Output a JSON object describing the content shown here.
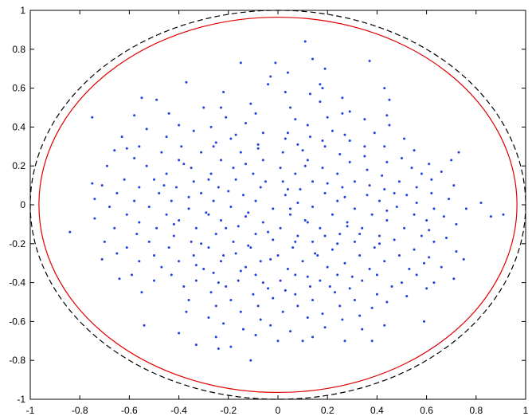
{
  "chart_data": {
    "type": "scatter",
    "title": "",
    "xlabel": "",
    "ylabel": "",
    "xlim": [
      -1,
      1
    ],
    "ylim": [
      -1,
      1
    ],
    "x_ticks": [
      "-1",
      "-0.8",
      "-0.6",
      "-0.4",
      "-0.2",
      "0",
      "0.2",
      "0.4",
      "0.6",
      "0.8",
      "1"
    ],
    "y_ticks": [
      "1",
      "0.8",
      "0.6",
      "0.4",
      "0.2",
      "0",
      "-0.2",
      "-0.4",
      "-0.6",
      "-0.8",
      "-1"
    ],
    "grid": false,
    "colors": {
      "points": "#1f3fe0",
      "inner_circle": "#e00000",
      "outer_circle": "#000000"
    },
    "curves": [
      {
        "shape": "ellipse",
        "center": [
          0,
          0
        ],
        "radius": 0.965,
        "style": "solid",
        "color": "#e00000"
      },
      {
        "shape": "ellipse",
        "center": [
          0,
          0
        ],
        "radius": 1.0,
        "style": "dashed",
        "color": "#000000"
      }
    ],
    "points": [
      [
        0.11,
        0.84
      ],
      [
        0.14,
        0.75
      ],
      [
        -0.15,
        0.73
      ],
      [
        0.37,
        0.74
      ],
      [
        -0.01,
        0.73
      ],
      [
        0.19,
        0.7
      ],
      [
        0.04,
        0.68
      ],
      [
        -0.03,
        0.66
      ],
      [
        -0.37,
        0.63
      ],
      [
        -0.04,
        0.62
      ],
      [
        0.17,
        0.62
      ],
      [
        0.18,
        0.6
      ],
      [
        -0.22,
        0.58
      ],
      [
        0.03,
        0.58
      ],
      [
        0.43,
        0.6
      ],
      [
        0.13,
        0.57
      ],
      [
        -0.55,
        0.55
      ],
      [
        -0.49,
        0.54
      ],
      [
        0.17,
        0.53
      ],
      [
        0.45,
        0.54
      ],
      [
        0.26,
        0.55
      ],
      [
        -0.3,
        0.5
      ],
      [
        0.05,
        0.5
      ],
      [
        -0.23,
        0.5
      ],
      [
        -0.11,
        0.52
      ],
      [
        -0.09,
        0.47
      ],
      [
        0.26,
        0.47
      ],
      [
        0.29,
        0.48
      ],
      [
        0.2,
        0.45
      ],
      [
        0.44,
        0.46
      ],
      [
        -0.75,
        0.45
      ],
      [
        -0.58,
        0.46
      ],
      [
        -0.44,
        0.47
      ],
      [
        -0.21,
        0.45
      ],
      [
        0.07,
        0.44
      ],
      [
        0.35,
        0.44
      ],
      [
        -0.4,
        0.41
      ],
      [
        -0.27,
        0.4
      ],
      [
        -0.13,
        0.42
      ],
      [
        0.12,
        0.41
      ],
      [
        0.45,
        0.41
      ],
      [
        -0.53,
        0.39
      ],
      [
        -0.34,
        0.38
      ],
      [
        -0.06,
        0.37
      ],
      [
        0.22,
        0.38
      ],
      [
        0.39,
        0.37
      ],
      [
        0.13,
        0.35
      ],
      [
        -0.63,
        0.35
      ],
      [
        -0.45,
        0.35
      ],
      [
        -0.19,
        0.34
      ],
      [
        0.03,
        0.34
      ],
      [
        0.29,
        0.33
      ],
      [
        0.51,
        0.34
      ],
      [
        -0.25,
        0.32
      ],
      [
        0.08,
        0.31
      ],
      [
        -0.56,
        0.3
      ],
      [
        -0.39,
        0.3
      ],
      [
        -0.08,
        0.29
      ],
      [
        0.19,
        0.3
      ],
      [
        0.43,
        0.3
      ],
      [
        0.55,
        0.28
      ],
      [
        -0.66,
        0.28
      ],
      [
        -0.61,
        0.29
      ],
      [
        -0.47,
        0.27
      ],
      [
        -0.31,
        0.27
      ],
      [
        -0.15,
        0.27
      ],
      [
        0.02,
        0.27
      ],
      [
        0.25,
        0.26
      ],
      [
        0.35,
        0.25
      ],
      [
        0.5,
        0.24
      ],
      [
        0.73,
        0.27
      ],
      [
        -0.58,
        0.24
      ],
      [
        -0.4,
        0.23
      ],
      [
        -0.23,
        0.23
      ],
      [
        -0.06,
        0.23
      ],
      [
        0.12,
        0.23
      ],
      [
        0.29,
        0.22
      ],
      [
        0.44,
        0.22
      ],
      [
        0.61,
        0.21
      ],
      [
        0.7,
        0.23
      ],
      [
        -0.69,
        0.2
      ],
      [
        -0.53,
        0.2
      ],
      [
        -0.35,
        0.19
      ],
      [
        -0.18,
        0.19
      ],
      [
        0.01,
        0.19
      ],
      [
        0.18,
        0.19
      ],
      [
        0.36,
        0.18
      ],
      [
        0.54,
        0.19
      ],
      [
        -0.45,
        0.16
      ],
      [
        -0.27,
        0.16
      ],
      [
        -0.1,
        0.16
      ],
      [
        0.07,
        0.16
      ],
      [
        0.24,
        0.16
      ],
      [
        0.42,
        0.15
      ],
      [
        0.58,
        0.16
      ],
      [
        0.66,
        0.17
      ],
      [
        -0.62,
        0.13
      ],
      [
        -0.5,
        0.13
      ],
      [
        -0.34,
        0.12
      ],
      [
        -0.17,
        0.13
      ],
      [
        0.02,
        0.12
      ],
      [
        0.14,
        0.12
      ],
      [
        0.31,
        0.12
      ],
      [
        0.49,
        0.12
      ],
      [
        0.62,
        0.13
      ],
      [
        -0.75,
        0.11
      ],
      [
        -0.71,
        0.1
      ],
      [
        -0.56,
        0.09
      ],
      [
        -0.41,
        0.09
      ],
      [
        -0.24,
        0.09
      ],
      [
        -0.07,
        0.09
      ],
      [
        0.09,
        0.08
      ],
      [
        0.26,
        0.09
      ],
      [
        0.43,
        0.08
      ],
      [
        0.56,
        0.09
      ],
      [
        0.71,
        0.1
      ],
      [
        -0.65,
        0.06
      ],
      [
        -0.48,
        0.06
      ],
      [
        -0.31,
        0.06
      ],
      [
        -0.14,
        0.05
      ],
      [
        0.03,
        0.05
      ],
      [
        0.19,
        0.06
      ],
      [
        0.36,
        0.05
      ],
      [
        0.52,
        0.05
      ],
      [
        0.62,
        0.06
      ],
      [
        -0.74,
        0.03
      ],
      [
        -0.58,
        0.02
      ],
      [
        -0.43,
        0.02
      ],
      [
        -0.26,
        0.02
      ],
      [
        -0.09,
        0.02
      ],
      [
        0.08,
        0.01
      ],
      [
        0.24,
        0.02
      ],
      [
        0.41,
        0.02
      ],
      [
        0.56,
        0.01
      ],
      [
        0.69,
        0.03
      ],
      [
        0.82,
        0.01
      ],
      [
        -0.68,
        -0.01
      ],
      [
        -0.52,
        -0.01
      ],
      [
        -0.36,
        -0.02
      ],
      [
        -0.19,
        -0.01
      ],
      [
        -0.02,
        -0.02
      ],
      [
        0.14,
        -0.01
      ],
      [
        0.31,
        -0.02
      ],
      [
        0.48,
        -0.01
      ],
      [
        0.63,
        -0.02
      ],
      [
        0.76,
        -0.02
      ],
      [
        0.91,
        -0.05
      ],
      [
        -0.74,
        -0.07
      ],
      [
        -0.61,
        -0.05
      ],
      [
        -0.45,
        -0.05
      ],
      [
        -0.28,
        -0.05
      ],
      [
        -0.12,
        -0.04
      ],
      [
        0.05,
        -0.05
      ],
      [
        0.22,
        -0.05
      ],
      [
        0.38,
        -0.05
      ],
      [
        0.55,
        -0.05
      ],
      [
        0.67,
        -0.06
      ],
      [
        0.86,
        -0.06
      ],
      [
        -0.56,
        -0.09
      ],
      [
        -0.4,
        -0.08
      ],
      [
        -0.23,
        -0.08
      ],
      [
        -0.06,
        -0.09
      ],
      [
        0.11,
        -0.08
      ],
      [
        0.28,
        -0.09
      ],
      [
        0.44,
        -0.08
      ],
      [
        0.6,
        -0.08
      ],
      [
        0.72,
        -0.1
      ],
      [
        -0.66,
        -0.12
      ],
      [
        -0.49,
        -0.12
      ],
      [
        -0.33,
        -0.12
      ],
      [
        -0.16,
        -0.11
      ],
      [
        0.01,
        -0.12
      ],
      [
        0.17,
        -0.12
      ],
      [
        0.34,
        -0.12
      ],
      [
        0.51,
        -0.12
      ],
      [
        0.61,
        -0.13
      ],
      [
        -0.84,
        -0.14
      ],
      [
        -0.57,
        -0.15
      ],
      [
        -0.42,
        -0.16
      ],
      [
        -0.25,
        -0.15
      ],
      [
        -0.09,
        -0.15
      ],
      [
        0.08,
        -0.16
      ],
      [
        0.25,
        -0.15
      ],
      [
        0.41,
        -0.16
      ],
      [
        0.58,
        -0.16
      ],
      [
        0.68,
        -0.17
      ],
      [
        -0.7,
        -0.19
      ],
      [
        -0.52,
        -0.19
      ],
      [
        -0.35,
        -0.19
      ],
      [
        -0.18,
        -0.19
      ],
      [
        -0.02,
        -0.18
      ],
      [
        0.14,
        -0.19
      ],
      [
        0.31,
        -0.19
      ],
      [
        0.47,
        -0.18
      ],
      [
        0.63,
        -0.19
      ],
      [
        -0.61,
        -0.22
      ],
      [
        -0.44,
        -0.22
      ],
      [
        -0.28,
        -0.22
      ],
      [
        -0.11,
        -0.22
      ],
      [
        0.06,
        -0.22
      ],
      [
        0.22,
        -0.23
      ],
      [
        0.39,
        -0.22
      ],
      [
        0.55,
        -0.23
      ],
      [
        0.72,
        -0.24
      ],
      [
        -0.65,
        -0.25
      ],
      [
        -0.5,
        -0.26
      ],
      [
        -0.34,
        -0.26
      ],
      [
        -0.17,
        -0.25
      ],
      [
        0.0,
        -0.26
      ],
      [
        0.16,
        -0.26
      ],
      [
        0.33,
        -0.26
      ],
      [
        0.49,
        -0.26
      ],
      [
        0.61,
        -0.27
      ],
      [
        -0.71,
        -0.28
      ],
      [
        -0.56,
        -0.29
      ],
      [
        -0.4,
        -0.29
      ],
      [
        -0.23,
        -0.29
      ],
      [
        -0.07,
        -0.29
      ],
      [
        0.1,
        -0.29
      ],
      [
        0.27,
        -0.3
      ],
      [
        0.43,
        -0.29
      ],
      [
        0.59,
        -0.3
      ],
      [
        0.75,
        -0.28
      ],
      [
        -0.47,
        -0.32
      ],
      [
        -0.3,
        -0.33
      ],
      [
        -0.13,
        -0.32
      ],
      [
        0.04,
        -0.33
      ],
      [
        0.2,
        -0.32
      ],
      [
        0.37,
        -0.33
      ],
      [
        0.53,
        -0.33
      ],
      [
        0.66,
        -0.32
      ],
      [
        -0.59,
        -0.36
      ],
      [
        -0.43,
        -0.36
      ],
      [
        -0.26,
        -0.35
      ],
      [
        -0.09,
        -0.36
      ],
      [
        0.07,
        -0.36
      ],
      [
        0.24,
        -0.36
      ],
      [
        0.4,
        -0.36
      ],
      [
        0.56,
        -0.36
      ],
      [
        0.71,
        -0.38
      ],
      [
        -0.64,
        -0.38
      ],
      [
        -0.5,
        -0.39
      ],
      [
        -0.33,
        -0.39
      ],
      [
        -0.16,
        -0.39
      ],
      [
        0.01,
        -0.39
      ],
      [
        0.17,
        -0.39
      ],
      [
        0.34,
        -0.39
      ],
      [
        0.5,
        -0.4
      ],
      [
        0.63,
        -0.4
      ],
      [
        -0.38,
        -0.42
      ],
      [
        -0.21,
        -0.42
      ],
      [
        -0.04,
        -0.43
      ],
      [
        0.13,
        -0.42
      ],
      [
        0.29,
        -0.43
      ],
      [
        0.46,
        -0.42
      ],
      [
        0.6,
        -0.43
      ],
      [
        -0.55,
        -0.45
      ],
      [
        -0.27,
        -0.45
      ],
      [
        -0.1,
        -0.46
      ],
      [
        0.07,
        -0.46
      ],
      [
        0.23,
        -0.45
      ],
      [
        0.4,
        -0.46
      ],
      [
        0.52,
        -0.47
      ],
      [
        -0.36,
        -0.49
      ],
      [
        -0.19,
        -0.49
      ],
      [
        -0.02,
        -0.48
      ],
      [
        0.14,
        -0.49
      ],
      [
        0.31,
        -0.49
      ],
      [
        0.44,
        -0.5
      ],
      [
        -0.25,
        -0.52
      ],
      [
        -0.08,
        -0.52
      ],
      [
        0.08,
        -0.52
      ],
      [
        0.25,
        -0.52
      ],
      [
        0.38,
        -0.53
      ],
      [
        -0.37,
        -0.55
      ],
      [
        -0.15,
        -0.55
      ],
      [
        0.02,
        -0.55
      ],
      [
        0.18,
        -0.56
      ],
      [
        0.33,
        -0.57
      ],
      [
        -0.28,
        -0.58
      ],
      [
        -0.07,
        -0.59
      ],
      [
        0.12,
        -0.58
      ],
      [
        0.26,
        -0.59
      ],
      [
        -0.54,
        -0.62
      ],
      [
        -0.22,
        -0.61
      ],
      [
        -0.03,
        -0.62
      ],
      [
        0.19,
        -0.63
      ],
      [
        0.43,
        -0.62
      ],
      [
        0.59,
        -0.6
      ],
      [
        -0.14,
        -0.64
      ],
      [
        0.05,
        -0.65
      ],
      [
        0.34,
        -0.64
      ],
      [
        -0.4,
        -0.66
      ],
      [
        -0.25,
        -0.68
      ],
      [
        -0.09,
        -0.67
      ],
      [
        0.14,
        -0.68
      ],
      [
        0.27,
        -0.7
      ],
      [
        0.38,
        -0.7
      ],
      [
        0.0,
        -0.7
      ],
      [
        -0.33,
        -0.72
      ],
      [
        -0.19,
        -0.73
      ],
      [
        0.1,
        -0.7
      ],
      [
        -0.24,
        -0.74
      ],
      [
        -0.11,
        -0.8
      ],
      [
        -0.28,
        0.13
      ],
      [
        -0.2,
        0.07
      ],
      [
        -0.13,
        0.21
      ],
      [
        -0.05,
        0.12
      ],
      [
        0.04,
        0.08
      ],
      [
        0.11,
        0.2
      ],
      [
        0.2,
        0.11
      ],
      [
        0.27,
        0.04
      ],
      [
        -0.29,
        -0.04
      ],
      [
        -0.21,
        -0.12
      ],
      [
        -0.13,
        -0.06
      ],
      [
        -0.04,
        -0.14
      ],
      [
        0.05,
        -0.02
      ],
      [
        0.12,
        -0.09
      ],
      [
        0.19,
        -0.16
      ],
      [
        0.28,
        -0.11
      ],
      [
        -0.31,
        -0.2
      ],
      [
        -0.22,
        -0.26
      ],
      [
        -0.12,
        -0.21
      ],
      [
        -0.03,
        -0.28
      ],
      [
        0.07,
        -0.19
      ],
      [
        0.15,
        -0.25
      ],
      [
        0.24,
        -0.2
      ],
      [
        0.33,
        -0.15
      ],
      [
        -0.26,
        0.3
      ],
      [
        -0.17,
        0.36
      ],
      [
        -0.08,
        0.31
      ],
      [
        0.04,
        0.37
      ],
      [
        0.1,
        0.28
      ],
      [
        0.18,
        0.33
      ],
      [
        0.27,
        0.36
      ],
      [
        0.35,
        0.3
      ],
      [
        -0.36,
        0.04
      ],
      [
        -0.42,
        -0.1
      ],
      [
        -0.46,
        0.1
      ],
      [
        -0.38,
        0.21
      ],
      [
        0.37,
        0.1
      ],
      [
        0.44,
        -0.03
      ],
      [
        0.41,
        -0.2
      ],
      [
        0.47,
        0.06
      ],
      [
        -0.15,
        -0.34
      ],
      [
        -0.06,
        -0.4
      ],
      [
        0.03,
        -0.44
      ],
      [
        0.12,
        -0.37
      ],
      [
        0.21,
        -0.42
      ],
      [
        -0.24,
        -0.4
      ],
      [
        0.3,
        -0.37
      ],
      [
        -0.33,
        -0.31
      ]
    ]
  }
}
